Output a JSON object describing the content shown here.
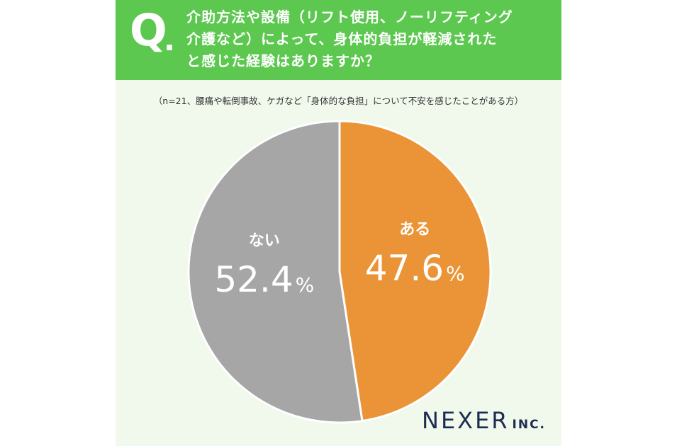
{
  "question": {
    "mark": "Q",
    "lines": [
      "介助方法や設備（リフト使用、ノーリフティング",
      "介護など）によって、身体的負担が軽減された",
      "と感じた経験はありますか？"
    ]
  },
  "note": "（n=21、腰痛や転倒事故、ケガなど「身体的な負担」について不安を感じたことがある方）",
  "chart_data": {
    "type": "pie",
    "slices": [
      {
        "label": "ある",
        "value": 47.6,
        "display": "47.6",
        "unit": "%",
        "color": "#eb9437"
      },
      {
        "label": "ない",
        "value": 52.4,
        "display": "52.4",
        "unit": "%",
        "color": "#a6a6a6"
      }
    ],
    "start": "12 o'clock",
    "direction": "clockwise"
  },
  "logo": {
    "main": "NEXER",
    "sub": "INC."
  },
  "colors": {
    "header": "#5cc84f",
    "panel": "#f1f8ec",
    "text_dark": "#333333",
    "logo": "#1e2c52"
  }
}
